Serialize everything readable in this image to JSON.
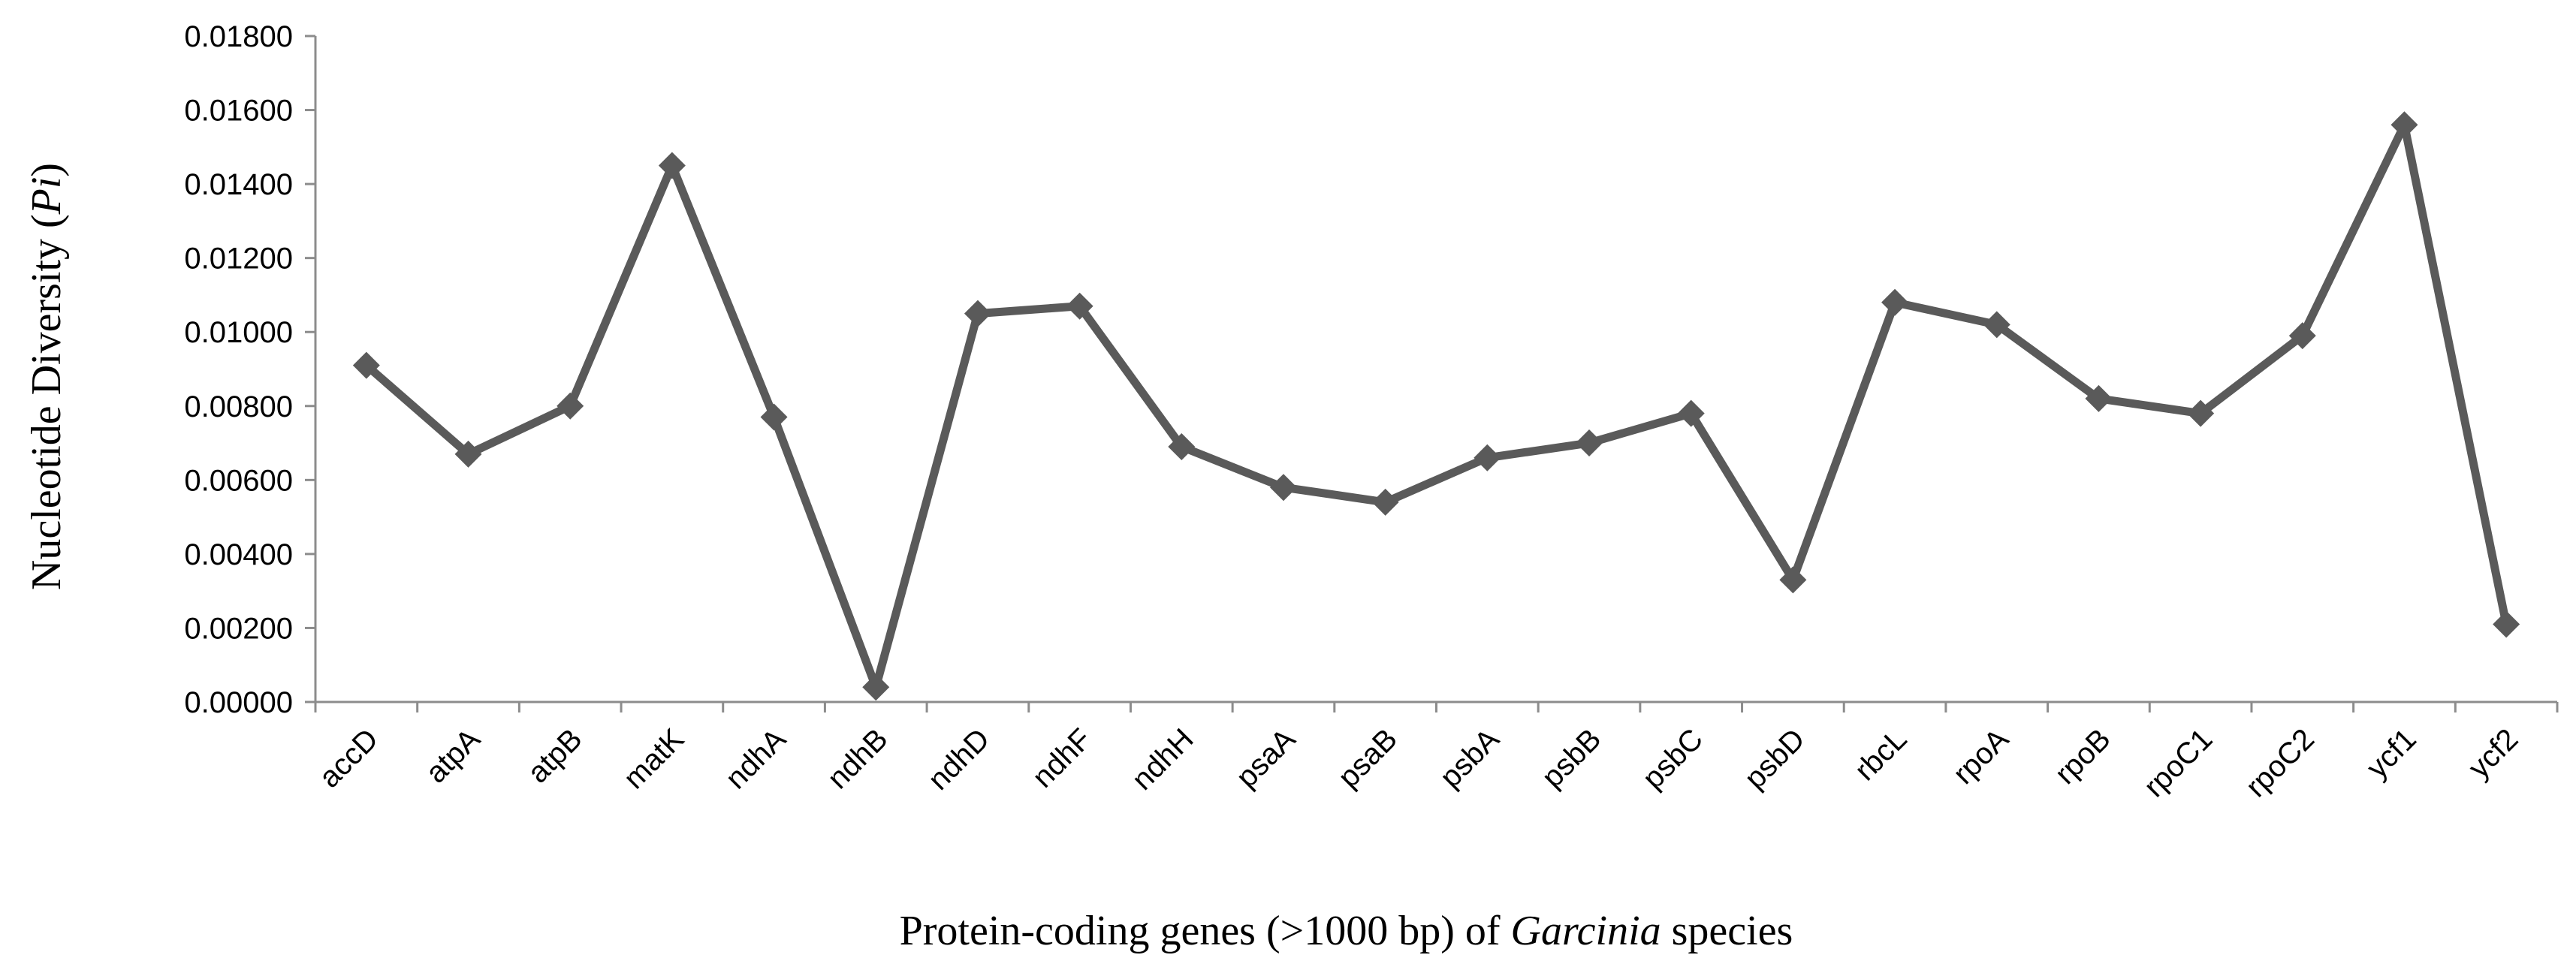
{
  "chart_data": {
    "type": "line",
    "categories": [
      "accD",
      "atpA",
      "atpB",
      "matK",
      "ndhA",
      "ndhB",
      "ndhD",
      "ndhF",
      "ndhH",
      "psaA",
      "psaB",
      "psbA",
      "psbB",
      "psbC",
      "psbD",
      "rbcL",
      "rpoA",
      "rpoB",
      "rpoC1",
      "rpoC2",
      "ycf1",
      "ycf2"
    ],
    "series": [
      {
        "values": [
          0.0091,
          0.0067,
          0.008,
          0.0145,
          0.0077,
          0.0004,
          0.0105,
          0.0107,
          0.0069,
          0.0058,
          0.0054,
          0.0066,
          0.007,
          0.0078,
          0.0033,
          0.0108,
          0.0102,
          0.0082,
          0.0078,
          0.0099,
          0.0156,
          0.0021
        ]
      }
    ],
    "ylim": [
      0,
      0.018
    ],
    "ytick_values": [
      0,
      0.002,
      0.004,
      0.006,
      0.008,
      0.01,
      0.012,
      0.014,
      0.016,
      0.018
    ],
    "ytick_labels": [
      "0.00000",
      "0.00200",
      "0.00400",
      "0.00600",
      "0.00800",
      "0.01000",
      "0.01200",
      "0.01400",
      "0.01600",
      "0.01800"
    ],
    "ylabel": {
      "prefix": "Nucleotide Diversity (",
      "italic": "Pi",
      "suffix": ")"
    },
    "xlabel": {
      "prefix": "Protein-coding genes (>1000 bp) of ",
      "italic": "Garcinia",
      "suffix": " species"
    },
    "grid": false,
    "legend": "none",
    "line_color": "#5a5a5a",
    "marker": "diamond"
  }
}
